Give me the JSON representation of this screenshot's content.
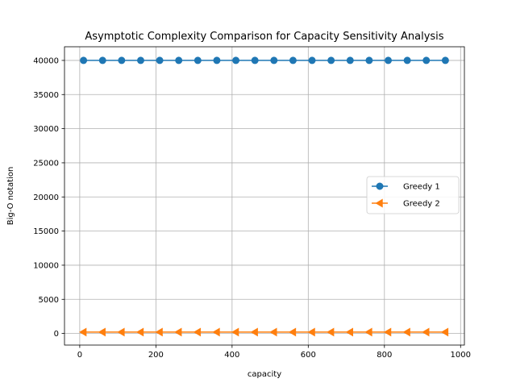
{
  "chart_data": {
    "type": "line",
    "title": "Asymptotic Complexity Comparison for Capacity Sensitivity Analysis",
    "xlabel": "capacity",
    "ylabel": "Big-O notation",
    "xlim": [
      -40,
      1010
    ],
    "ylim": [
      -1700,
      42000
    ],
    "xticks": [
      0,
      200,
      400,
      600,
      800,
      1000
    ],
    "yticks": [
      0,
      5000,
      10000,
      15000,
      20000,
      25000,
      30000,
      35000,
      40000
    ],
    "grid": true,
    "legend_position": "center-right",
    "x": [
      10,
      60,
      110,
      160,
      210,
      260,
      310,
      360,
      410,
      460,
      510,
      560,
      610,
      660,
      710,
      760,
      810,
      860,
      910,
      960
    ],
    "series": [
      {
        "name": "Greedy 1",
        "color": "#1f77b4",
        "marker": "circle",
        "values": [
          40000,
          40000,
          40000,
          40000,
          40000,
          40000,
          40000,
          40000,
          40000,
          40000,
          40000,
          40000,
          40000,
          40000,
          40000,
          40000,
          40000,
          40000,
          40000,
          40000
        ]
      },
      {
        "name": "Greedy 2",
        "color": "#ff7f0e",
        "marker": "triangle-left",
        "values": [
          200,
          200,
          200,
          200,
          200,
          200,
          200,
          200,
          200,
          200,
          200,
          200,
          200,
          200,
          200,
          200,
          200,
          200,
          200,
          200
        ]
      }
    ]
  }
}
